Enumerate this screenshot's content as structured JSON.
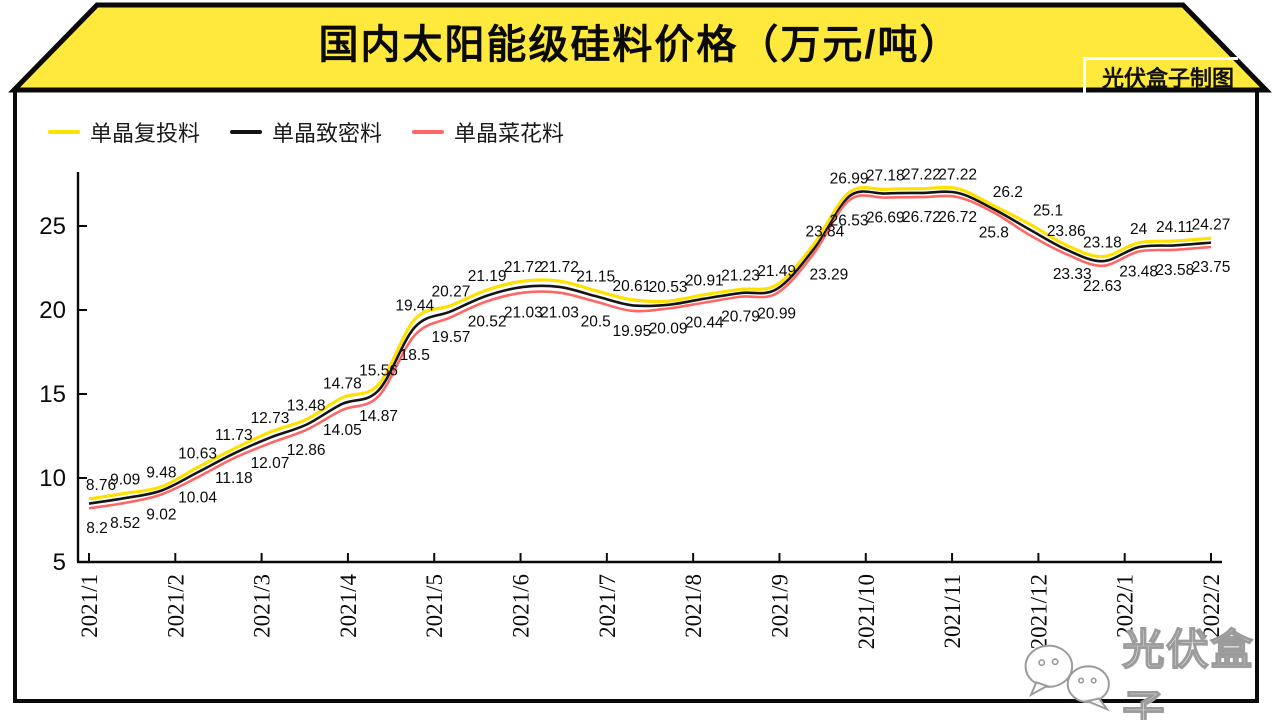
{
  "header": {
    "title": "国内太阳能级硅料价格（万元/吨）",
    "credit": "光伏盒子制图",
    "band_color": "#FFE93C"
  },
  "legend": [
    {
      "label": "单晶复投料",
      "color": "#FFE100"
    },
    {
      "label": "单晶致密料",
      "color": "#141414"
    },
    {
      "label": "单晶菜花料",
      "color": "#FF6666"
    }
  ],
  "watermark": {
    "text": "光伏盒子",
    "icon": "wechat-icon"
  },
  "chart_data": {
    "type": "line",
    "title": "国内太阳能级硅料价格（万元/吨）",
    "ylim": [
      5,
      28.2
    ],
    "yticks": [
      5,
      10,
      15,
      20,
      25
    ],
    "grid": false,
    "legend_position": "top-left",
    "x_tick_labels": [
      "2021/1",
      "2021/2",
      "2021/3",
      "2021/4",
      "2021/5",
      "2021/6",
      "2021/7",
      "2021/8",
      "2021/9",
      "2021/10",
      "2021/11",
      "2021/12",
      "2022/1",
      "2022/2"
    ],
    "series": [
      {
        "name": "单晶复投料",
        "color": "#FFE100",
        "labeled": true,
        "values": [
          8.76,
          9.09,
          9.48,
          10.63,
          11.73,
          12.73,
          13.48,
          14.78,
          15.56,
          19.44,
          20.27,
          21.19,
          21.72,
          21.72,
          21.15,
          20.61,
          20.53,
          20.91,
          21.23,
          21.49,
          23.84,
          26.99,
          27.18,
          27.22,
          27.22,
          26.2,
          25.1,
          23.86,
          23.18,
          24,
          24.11,
          24.27
        ],
        "labels": [
          "8.76",
          "9.09",
          "9.48",
          "10.63",
          "11.73",
          "12.73",
          "13.48",
          "14.78",
          "15.56",
          "19.44",
          "20.27",
          "21.19",
          "21.72",
          "21.72",
          "21.15",
          "20.61",
          "20.53",
          "20.91",
          "21.23",
          "21.49",
          "23.84",
          "26.99",
          "27.18",
          "27.22",
          "27.22",
          "26.2",
          "25.1",
          "23.86",
          "23.18",
          "24",
          "24.11",
          "24.27"
        ]
      },
      {
        "name": "单晶致密料",
        "color": "#141414",
        "labeled": false
      },
      {
        "name": "单晶菜花料",
        "color": "#FF6666",
        "labeled": true,
        "values": [
          8.2,
          8.52,
          9.02,
          10.04,
          11.18,
          12.07,
          12.86,
          14.05,
          14.87,
          18.5,
          19.57,
          20.52,
          21.03,
          21.03,
          20.5,
          19.95,
          20.09,
          20.44,
          20.79,
          20.99,
          23.29,
          26.53,
          26.69,
          26.72,
          26.72,
          25.8,
          24.45,
          23.33,
          22.63,
          23.48,
          23.58,
          23.75
        ],
        "labels": [
          "8.2",
          "8.52",
          "9.02",
          "10.04",
          "11.18",
          "12.07",
          "12.86",
          "14.05",
          "14.87",
          "18.5",
          "19.57",
          "20.52",
          "21.03",
          "21.03",
          "20.5",
          "19.95",
          "20.09",
          "20.44",
          "20.79",
          "20.99",
          "23.29",
          "26.53",
          "26.69",
          "26.72",
          "26.72",
          "25.8",
          "",
          "23.33",
          "22.63",
          "23.48",
          "23.58",
          "23.75"
        ]
      }
    ]
  }
}
